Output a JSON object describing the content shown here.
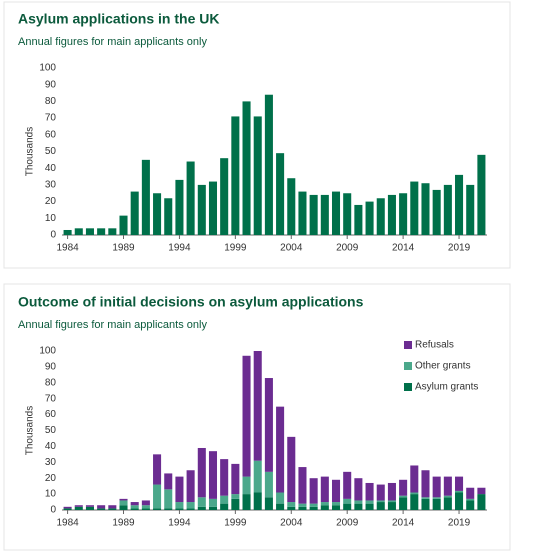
{
  "chart_data": [
    {
      "type": "bar",
      "title": "Asylum applications in the UK",
      "subtitle": "Annual figures for main applicants only",
      "ylabel": "Thousands",
      "x": [
        1984,
        1985,
        1986,
        1987,
        1988,
        1989,
        1990,
        1991,
        1992,
        1993,
        1994,
        1995,
        1996,
        1997,
        1998,
        1999,
        2000,
        2001,
        2002,
        2003,
        2004,
        2005,
        2006,
        2007,
        2008,
        2009,
        2010,
        2011,
        2012,
        2013,
        2014,
        2015,
        2016,
        2017,
        2018,
        2019,
        2020,
        2021
      ],
      "values": [
        3,
        4,
        4,
        4,
        4,
        11.6,
        26,
        45,
        25,
        22,
        33,
        44,
        30,
        32,
        46,
        71,
        80,
        71,
        84,
        49,
        34,
        26,
        24,
        24,
        26,
        25,
        18,
        20,
        22,
        24,
        25,
        32,
        31,
        27,
        30,
        36,
        30,
        48
      ],
      "color": "#00704a",
      "xlim": [
        1983.5,
        2021.5
      ],
      "xticks": [
        1984,
        1989,
        1994,
        1999,
        2004,
        2009,
        2014,
        2019
      ],
      "ylim": [
        0,
        100
      ],
      "yticks": [
        0,
        10,
        20,
        30,
        40,
        50,
        60,
        70,
        80,
        90,
        100
      ],
      "grid": false
    },
    {
      "type": "bar",
      "stacked": true,
      "title": "Outcome of initial decisions on asylum applications",
      "subtitle": "Annual figures for main applicants only",
      "ylabel": "Thousands",
      "x": [
        1984,
        1985,
        1986,
        1987,
        1988,
        1989,
        1990,
        1991,
        1992,
        1993,
        1994,
        1995,
        1996,
        1997,
        1998,
        1999,
        2000,
        2001,
        2002,
        2003,
        2004,
        2005,
        2006,
        2007,
        2008,
        2009,
        2010,
        2011,
        2012,
        2013,
        2014,
        2015,
        2016,
        2017,
        2018,
        2019,
        2020,
        2021
      ],
      "series": [
        {
          "name": "Asylum grants",
          "color": "#00704a",
          "values": [
            1,
            2,
            2,
            1,
            1,
            3,
            1,
            1,
            1,
            1,
            1,
            1,
            2,
            2,
            4,
            7,
            10,
            11,
            8,
            4,
            2,
            2,
            2,
            3,
            3,
            4,
            4,
            4,
            5,
            5,
            8,
            10,
            7,
            7,
            8,
            11,
            6,
            10
          ]
        },
        {
          "name": "Other grants",
          "color": "#4ba88b",
          "values": [
            0,
            0,
            0,
            0,
            0,
            3,
            2,
            2,
            15,
            12,
            4,
            4,
            6,
            5,
            5,
            3,
            11,
            20,
            16,
            7,
            3,
            2,
            2,
            2,
            2,
            3,
            2,
            2,
            1,
            1,
            1,
            1,
            1,
            1,
            1,
            1,
            1,
            0
          ]
        },
        {
          "name": "Refusals",
          "color": "#6b2c91",
          "values": [
            1,
            1,
            1,
            2,
            2,
            1,
            2,
            3,
            19,
            10,
            16,
            20,
            31,
            30,
            23,
            19,
            76,
            69,
            59,
            54,
            41,
            23,
            16,
            16,
            14,
            17,
            14,
            11,
            10,
            11,
            10,
            17,
            17,
            13,
            12,
            9,
            7,
            4
          ]
        }
      ],
      "legend": "top-right",
      "xlim": [
        1983.5,
        2021.5
      ],
      "xticks": [
        1984,
        1989,
        1994,
        1999,
        2004,
        2009,
        2014,
        2019
      ],
      "ylim": [
        0,
        100
      ],
      "yticks": [
        0,
        10,
        20,
        30,
        40,
        50,
        60,
        70,
        80,
        90,
        100
      ],
      "grid": false
    }
  ]
}
